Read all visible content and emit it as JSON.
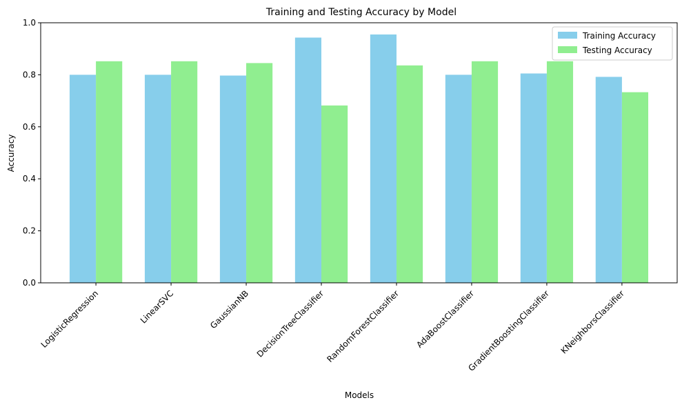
{
  "chart_data": {
    "type": "bar",
    "title": "Training and Testing Accuracy by Model",
    "xlabel": "Models",
    "ylabel": "Accuracy",
    "categories": [
      "LogisticRegression",
      "LinearSVC",
      "GaussianNB",
      "DecisionTreeClassifier",
      "RandomForestClassifier",
      "AdaBoostClassifier",
      "GradientBoostingClassifier",
      "KNeighborsClassifier"
    ],
    "series": [
      {
        "name": "Training Accuracy",
        "color": "#87ceeb",
        "values": [
          0.8,
          0.8,
          0.797,
          0.943,
          0.955,
          0.8,
          0.805,
          0.792
        ]
      },
      {
        "name": "Testing Accuracy",
        "color": "#90ee90",
        "values": [
          0.852,
          0.852,
          0.845,
          0.682,
          0.836,
          0.852,
          0.852,
          0.733
        ]
      }
    ],
    "ylim": [
      0,
      1.0
    ],
    "yticks": [
      "0.0",
      "0.2",
      "0.4",
      "0.6",
      "0.8",
      "1.0"
    ],
    "grid": false,
    "legend_position": "top-right"
  }
}
